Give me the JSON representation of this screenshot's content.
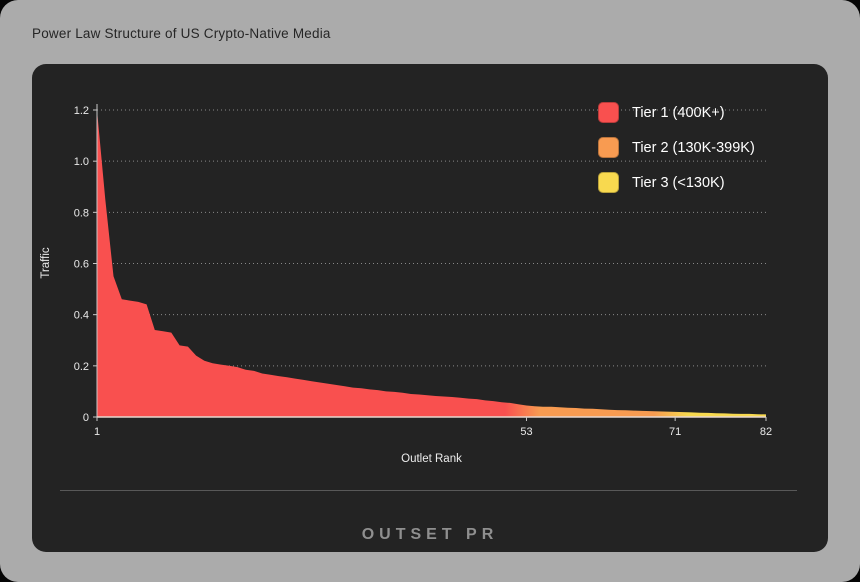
{
  "page": {
    "title": "Power Law Structure of US Crypto-Native Media"
  },
  "footer": {
    "logo_text": "OUTSET PR"
  },
  "legend": {
    "items": [
      {
        "label": "Tier 1 (400K+)",
        "color": "#F9504F"
      },
      {
        "label": "Tier 2 (130K-399K)",
        "color": "#F89B51"
      },
      {
        "label": "Tier 3 (<130K)",
        "color": "#F8D94F"
      }
    ]
  },
  "colors": {
    "card_background": "#ABABAB",
    "panel_background": "#232323",
    "tier1": "#F9504F",
    "tier2": "#F89B51",
    "tier3": "#F8D94F",
    "axis_text": "#e9e9e9",
    "gridline": "#9a9a9a",
    "baseline": "#e7d7cf"
  },
  "chart_data": {
    "type": "area",
    "title": "Power Law Structure of US Crypto-Native Media",
    "xlabel": "Outlet Rank",
    "ylabel": "Traffic",
    "xlim": [
      1,
      82
    ],
    "ylim": [
      0,
      1.2
    ],
    "xticks": [
      1,
      53,
      71,
      82
    ],
    "yticks": [
      0,
      0.2,
      0.4,
      0.6,
      0.8,
      1.0,
      1.2
    ],
    "ytick_labels": [
      "0",
      "0.2",
      "0.4",
      "0.6",
      "0.8",
      "1.0",
      "1.2"
    ],
    "grid": "horizontal-dotted",
    "legend_position": "top-right",
    "tiers": [
      {
        "name": "Tier 1 (400K+)",
        "start_rank": 1,
        "end_rank": 52,
        "color": "#F9504F"
      },
      {
        "name": "Tier 2 (130K-399K)",
        "start_rank": 53,
        "end_rank": 70,
        "color": "#F89B51"
      },
      {
        "name": "Tier 3 (<130K)",
        "start_rank": 71,
        "end_rank": 82,
        "color": "#F8D94F"
      }
    ],
    "x": [
      1,
      2,
      3,
      4,
      5,
      6,
      7,
      8,
      9,
      10,
      11,
      12,
      13,
      14,
      15,
      16,
      17,
      18,
      19,
      20,
      21,
      22,
      23,
      24,
      25,
      26,
      27,
      28,
      29,
      30,
      31,
      32,
      33,
      34,
      35,
      36,
      37,
      38,
      39,
      40,
      41,
      42,
      43,
      44,
      45,
      46,
      47,
      48,
      49,
      50,
      51,
      52,
      53,
      54,
      55,
      56,
      57,
      58,
      59,
      60,
      61,
      62,
      63,
      64,
      65,
      66,
      67,
      68,
      69,
      70,
      71,
      72,
      73,
      74,
      75,
      76,
      77,
      78,
      79,
      80,
      81,
      82
    ],
    "values": [
      1.2,
      0.85,
      0.55,
      0.46,
      0.455,
      0.45,
      0.44,
      0.34,
      0.335,
      0.33,
      0.28,
      0.275,
      0.24,
      0.22,
      0.21,
      0.205,
      0.2,
      0.195,
      0.185,
      0.18,
      0.17,
      0.165,
      0.16,
      0.155,
      0.15,
      0.145,
      0.14,
      0.135,
      0.13,
      0.125,
      0.12,
      0.115,
      0.112,
      0.108,
      0.105,
      0.1,
      0.098,
      0.095,
      0.09,
      0.088,
      0.085,
      0.082,
      0.08,
      0.078,
      0.075,
      0.072,
      0.07,
      0.065,
      0.062,
      0.058,
      0.055,
      0.05,
      0.045,
      0.042,
      0.04,
      0.04,
      0.038,
      0.036,
      0.035,
      0.033,
      0.032,
      0.03,
      0.028,
      0.027,
      0.026,
      0.025,
      0.024,
      0.023,
      0.022,
      0.021,
      0.02,
      0.019,
      0.018,
      0.017,
      0.016,
      0.015,
      0.014,
      0.013,
      0.012,
      0.012,
      0.011,
      0.01
    ]
  }
}
